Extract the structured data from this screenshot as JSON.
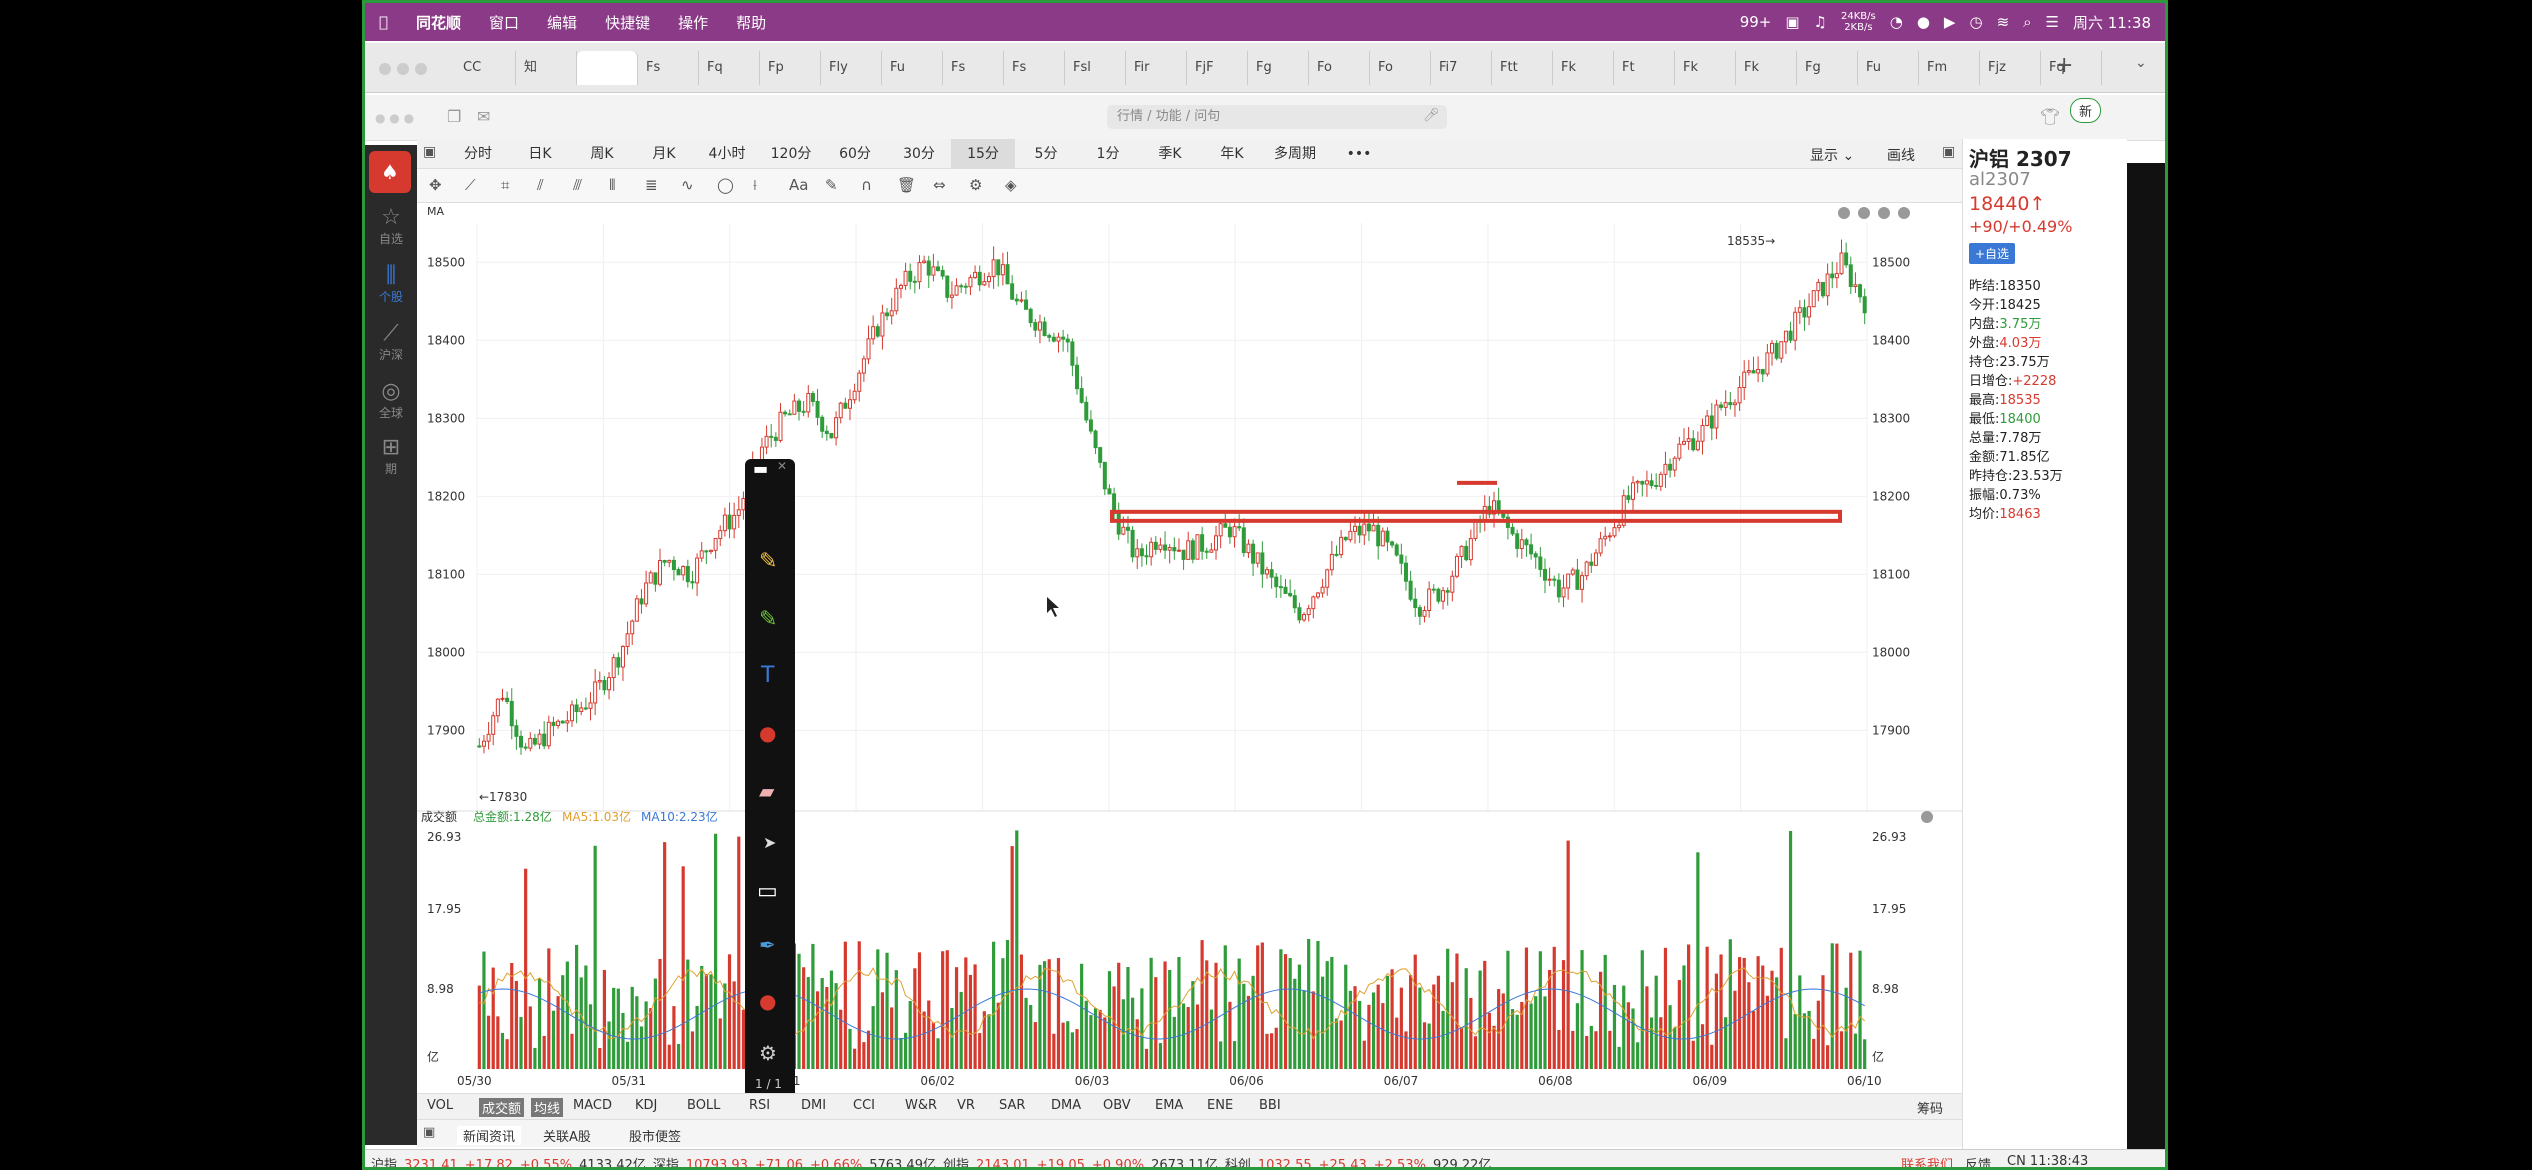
{
  "menubar": {
    "app": "同花顺",
    "items": [
      "窗口",
      "编辑",
      "快捷键",
      "操作",
      "帮助"
    ],
    "net_up": "24KB/s",
    "net_down": "2KB/s",
    "badge": "99+",
    "datetime": "周六 11:38"
  },
  "tabs": [
    "CC",
    "知",
    "",
    "Fs",
    "Fq",
    "Fp",
    "Fly",
    "Fu",
    "Fs",
    "Fs",
    "Fsl",
    "Fir",
    "FjF",
    "Fg",
    "Fo",
    "Fo",
    "Fi7",
    "Ftt",
    "Fk",
    "Ft",
    "Fk",
    "Fk",
    "Fg",
    "Fu",
    "Fm",
    "Fjz",
    "Fq"
  ],
  "search": {
    "placeholder": "行情 / 功能 / 问句",
    "refresh_label": "新"
  },
  "sidebar": {
    "items": [
      "自选",
      "个股",
      "沪深",
      "全球",
      "期"
    ]
  },
  "periods": [
    "分时",
    "日K",
    "周K",
    "月K",
    "4小时",
    "120分",
    "60分",
    "30分",
    "15分",
    "5分",
    "1分",
    "季K",
    "年K",
    "多周期",
    "•••"
  ],
  "period_active": "15分",
  "period_right": {
    "display": "显示",
    "draw": "画线"
  },
  "indicator_label": "MA",
  "chart_data": {
    "type": "candlestick",
    "ylim": [
      17830,
      18535
    ],
    "y_ticks": [
      18500,
      18400,
      18300,
      18200,
      18100,
      18000,
      17900
    ],
    "x_dates": [
      "05/30",
      "05/31",
      "06/01",
      "06/02",
      "06/03",
      "06/06",
      "06/07",
      "06/08",
      "06/09",
      "06/10"
    ],
    "price_path": [
      17880,
      17950,
      17870,
      17900,
      17920,
      17950,
      18000,
      18080,
      18120,
      18100,
      18150,
      18180,
      18260,
      18300,
      18320,
      18280,
      18350,
      18420,
      18470,
      18500,
      18460,
      18480,
      18500,
      18440,
      18420,
      18400,
      18280,
      18180,
      18120,
      18150,
      18130,
      18140,
      18160,
      18120,
      18080,
      18050,
      18100,
      18150,
      18160,
      18120,
      18060,
      18080,
      18130,
      18190,
      18150,
      18120,
      18080,
      18100,
      18150,
      18200,
      18220,
      18260,
      18280,
      18320,
      18350,
      18380,
      18420,
      18460,
      18500,
      18450
    ],
    "high_label": "18535",
    "low_label": "17830",
    "volume": {
      "title": "成交额",
      "total_label": "总金额:1.28亿",
      "ma5_label": "MA5:1.03亿",
      "ma10_label": "MA10:2.23亿",
      "ticks": [
        "26.93",
        "17.95",
        "8.98",
        "亿"
      ]
    },
    "resistance_level": 18175
  },
  "bottom_tabs": [
    "VOL",
    "成交额",
    "均线",
    "MACD",
    "KDJ",
    "BOLL",
    "RSI",
    "DMI",
    "CCI",
    "W&R",
    "VR",
    "SAR",
    "DMA",
    "OBV",
    "EMA",
    "ENE",
    "BBI"
  ],
  "bottom_right": "筹码",
  "news_tabs": [
    "新闻资讯",
    "关联A股",
    "股市便签"
  ],
  "quote": {
    "name": "沪铝 2307",
    "code": "al2307",
    "price": "18440↑",
    "change": "+90/+0.49%",
    "add_label": "+自选",
    "fields": [
      {
        "k": "昨结:",
        "v": "18350",
        "c": "#222"
      },
      {
        "k": "今开:",
        "v": "18425",
        "c": "#222"
      },
      {
        "k": "内盘:",
        "v": "3.75万",
        "c": "#2f9b3a"
      },
      {
        "k": "外盘:",
        "v": "4.03万",
        "c": "#d63a2f"
      },
      {
        "k": "持仓:",
        "v": "23.75万",
        "c": "#222"
      },
      {
        "k": "日增仓:",
        "v": "+2228",
        "c": "#d63a2f"
      },
      {
        "k": "最高:",
        "v": "18535",
        "c": "#d63a2f"
      },
      {
        "k": "最低:",
        "v": "18400",
        "c": "#2f9b3a"
      },
      {
        "k": "总量:",
        "v": "7.78万",
        "c": "#222"
      },
      {
        "k": "金额:",
        "v": "71.85亿",
        "c": "#222"
      },
      {
        "k": "昨持仓:",
        "v": "23.53万",
        "c": "#222"
      },
      {
        "k": "振幅:",
        "v": "0.73%",
        "c": "#222"
      },
      {
        "k": "均价:",
        "v": "18463",
        "c": "#d63a2f"
      }
    ]
  },
  "drawtool": {
    "page": "1 / 1"
  },
  "status": {
    "items": [
      {
        "t": "沪指",
        "c": "#333"
      },
      {
        "t": "3231.41",
        "c": "#d63a2f"
      },
      {
        "t": "+17.82",
        "c": "#d63a2f"
      },
      {
        "t": "+0.55%",
        "c": "#d63a2f"
      },
      {
        "t": "4133.42亿",
        "c": "#333"
      },
      {
        "t": "深指",
        "c": "#333"
      },
      {
        "t": "10793.93",
        "c": "#d63a2f"
      },
      {
        "t": "+71.06",
        "c": "#d63a2f"
      },
      {
        "t": "+0.66%",
        "c": "#d63a2f"
      },
      {
        "t": "5763.49亿",
        "c": "#333"
      },
      {
        "t": "创指",
        "c": "#333"
      },
      {
        "t": "2143.01",
        "c": "#d63a2f"
      },
      {
        "t": "+19.05",
        "c": "#d63a2f"
      },
      {
        "t": "+0.90%",
        "c": "#d63a2f"
      },
      {
        "t": "2673.11亿",
        "c": "#333"
      },
      {
        "t": "科创",
        "c": "#333"
      },
      {
        "t": "1032.55",
        "c": "#d63a2f"
      },
      {
        "t": "+25.43",
        "c": "#d63a2f"
      },
      {
        "t": "+2.53%",
        "c": "#d63a2f"
      },
      {
        "t": "929.22亿",
        "c": "#333"
      }
    ],
    "contact": "联系我们",
    "feedback": "反馈",
    "time": "CN 11:38:43"
  }
}
